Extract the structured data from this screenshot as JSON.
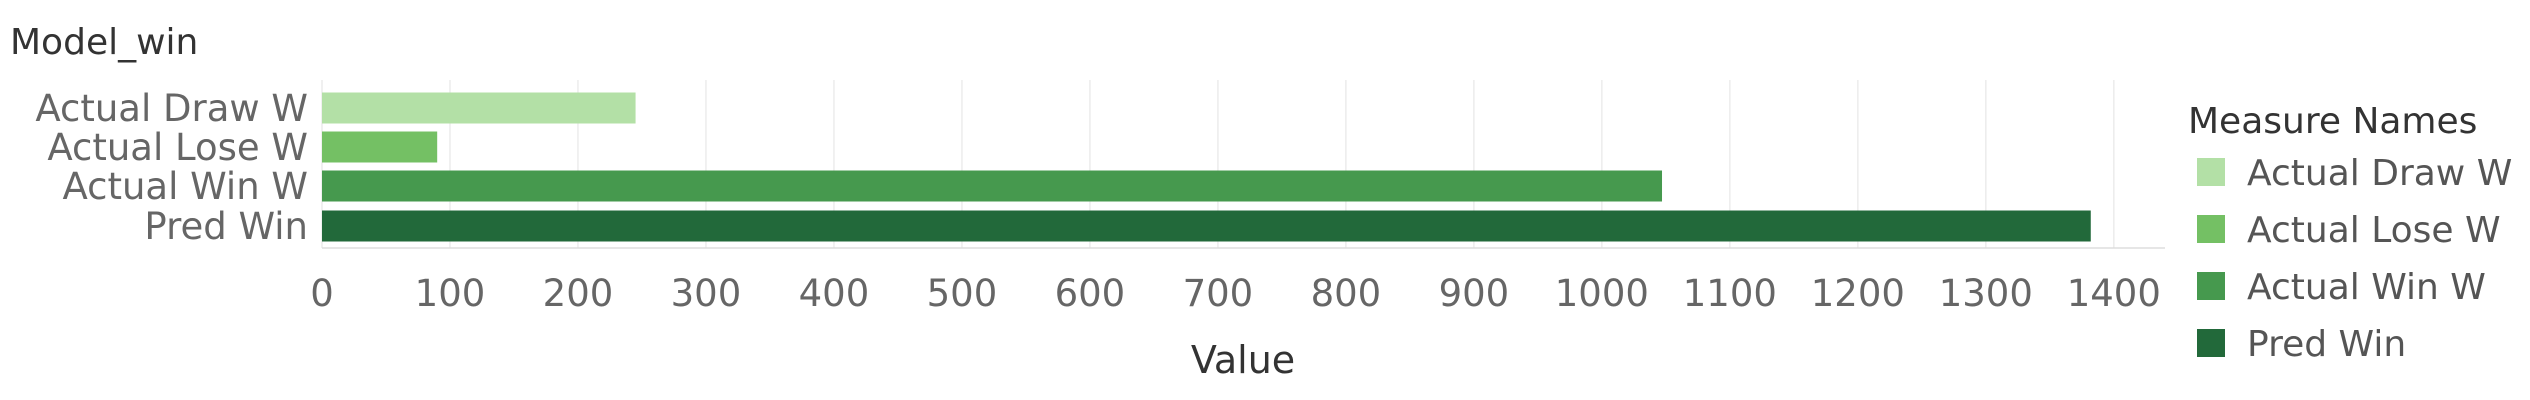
{
  "chart_data": {
    "type": "bar",
    "orientation": "horizontal",
    "title": "Model_win",
    "categories": [
      "Actual Draw W",
      "Actual Lose W",
      "Actual Win W",
      "Pred Win"
    ],
    "values": [
      245,
      90,
      1047,
      1382
    ],
    "colors": [
      "#b3e0a6",
      "#74c064",
      "#46994e",
      "#22693a"
    ],
    "xlabel": "Value",
    "ylabel": "",
    "xlim": [
      0,
      1440
    ],
    "xticks": [
      0,
      100,
      200,
      300,
      400,
      500,
      600,
      700,
      800,
      900,
      1000,
      1100,
      1200,
      1300,
      1400
    ],
    "grid": true,
    "legend": {
      "title": "Measure Names",
      "position": "right",
      "entries": [
        "Actual Draw W",
        "Actual Lose W",
        "Actual Win W",
        "Pred Win"
      ]
    }
  }
}
